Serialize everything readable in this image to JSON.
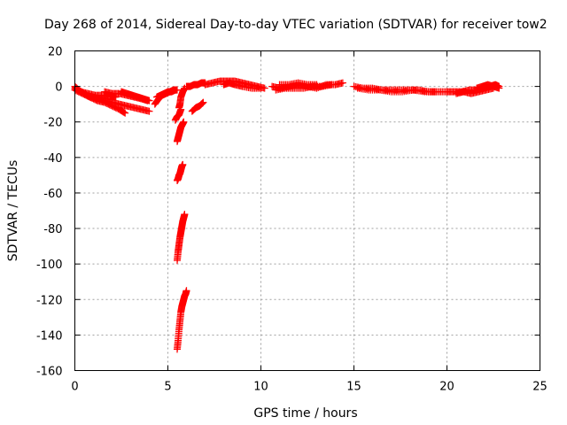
{
  "chart_data": {
    "type": "scatter",
    "title": "Day 268 of 2014, Sidereal Day-to-day VTEC variation (SDTVAR) for receiver tow2",
    "xlabel": "GPS time / hours",
    "ylabel": "SDTVAR / TECUs",
    "xlim": [
      0,
      25
    ],
    "ylim": [
      -160,
      20
    ],
    "xticks": [
      0,
      5,
      10,
      15,
      20,
      25
    ],
    "yticks": [
      20,
      0,
      -20,
      -40,
      -60,
      -80,
      -100,
      -120,
      -140,
      -160
    ],
    "grid": true,
    "marker": "+",
    "color": "#ff0000",
    "series": [
      {
        "name": "SDTVAR",
        "segments": [
          {
            "x": [
              0.0,
              0.2,
              0.5,
              0.8,
              1.2,
              1.6,
              2.0,
              2.4,
              2.7
            ],
            "y": [
              0,
              -2,
              -4,
              -6,
              -8,
              -9,
              -11,
              -13,
              -15
            ]
          },
          {
            "x": [
              0.0,
              0.3,
              0.7,
              1.1,
              1.5,
              1.9,
              2.2
            ],
            "y": [
              -1,
              -3,
              -4,
              -5,
              -5,
              -6,
              -6
            ]
          },
          {
            "x": [
              0.0,
              0.4,
              0.8,
              1.2,
              1.6,
              2.0,
              2.4,
              2.8,
              3.2,
              3.6,
              4.0
            ],
            "y": [
              -2,
              -4,
              -6,
              -7,
              -8,
              -9,
              -10,
              -11,
              -12,
              -13,
              -14
            ]
          },
          {
            "x": [
              1.6,
              2.0,
              2.4,
              2.8,
              3.2,
              3.6,
              3.9
            ],
            "y": [
              -3,
              -4,
              -4,
              -5,
              -6,
              -7,
              -8
            ]
          },
          {
            "x": [
              2.5,
              2.8,
              3.1,
              3.4,
              3.7,
              4.0
            ],
            "y": [
              -3,
              -4,
              -5,
              -6,
              -7,
              -8
            ]
          },
          {
            "x": [
              4.3,
              4.5,
              4.7,
              4.9,
              5.1,
              5.3,
              5.5
            ],
            "y": [
              -10,
              -7,
              -5,
              -4,
              -3,
              -2,
              -2
            ]
          },
          {
            "x": [
              4.4,
              4.6,
              4.8,
              5.0,
              5.2,
              5.4
            ],
            "y": [
              -6,
              -5,
              -4,
              -3,
              -3,
              -2
            ]
          },
          {
            "x": [
              5.5,
              5.55,
              5.6,
              5.65,
              5.7,
              5.75,
              5.8,
              5.85,
              5.9,
              5.95,
              6.0
            ],
            "y": [
              -148,
              -143,
              -137,
              -132,
              -127,
              -124,
              -122,
              -120,
              -118,
              -117,
              -115
            ]
          },
          {
            "x": [
              5.5,
              5.55,
              5.6,
              5.65,
              5.7,
              5.75,
              5.8,
              5.85,
              5.9
            ],
            "y": [
              -98,
              -93,
              -89,
              -85,
              -82,
              -79,
              -76,
              -74,
              -72
            ]
          },
          {
            "x": [
              5.5,
              5.55,
              5.6,
              5.65,
              5.7,
              5.75,
              5.8
            ],
            "y": [
              -53,
              -52,
              -50,
              -49,
              -47,
              -45,
              -44
            ]
          },
          {
            "x": [
              5.5,
              5.55,
              5.6,
              5.65,
              5.7,
              5.75,
              5.8,
              5.85
            ],
            "y": [
              -31,
              -29,
              -27,
              -25,
              -23,
              -22,
              -21,
              -20
            ]
          },
          {
            "x": [
              5.4,
              5.5,
              5.6,
              5.7
            ],
            "y": [
              -19,
              -17,
              -16,
              -13
            ]
          },
          {
            "x": [
              5.6,
              5.65,
              5.7,
              5.8,
              5.9
            ],
            "y": [
              -12,
              -10,
              -6,
              -3,
              -1
            ]
          },
          {
            "x": [
              6.0,
              6.2,
              6.4,
              6.6,
              6.8,
              7.0
            ],
            "y": [
              0,
              0,
              1,
              1,
              2,
              2
            ]
          },
          {
            "x": [
              6.3,
              6.5,
              6.7,
              6.9
            ],
            "y": [
              -14,
              -12,
              -11,
              -9
            ]
          },
          {
            "x": [
              7.0,
              7.4,
              7.8,
              8.2,
              8.6,
              9.0,
              9.4,
              9.8,
              10.2
            ],
            "y": [
              1,
              2,
              3,
              3,
              3,
              2,
              1,
              0,
              -1
            ]
          },
          {
            "x": [
              8.0,
              8.3,
              8.6,
              9.0,
              9.5,
              10.0
            ],
            "y": [
              1,
              2,
              1,
              0,
              -1,
              -1
            ]
          },
          {
            "x": [
              10.6,
              11.0,
              11.5,
              12.0,
              12.5,
              13.0,
              13.5,
              14.0,
              14.4
            ],
            "y": [
              0,
              -1,
              0,
              1,
              0,
              -1,
              1,
              1,
              2
            ]
          },
          {
            "x": [
              10.8,
              11.3,
              11.8,
              12.3,
              12.8,
              13.3,
              13.8
            ],
            "y": [
              -2,
              -1,
              -1,
              -1,
              0,
              0,
              1
            ]
          },
          {
            "x": [
              11.0,
              11.5,
              12.0,
              12.5,
              13.0
            ],
            "y": [
              1,
              1,
              2,
              1,
              1
            ]
          },
          {
            "x": [
              15.0,
              15.5,
              16.0,
              16.5,
              17.0,
              17.5,
              18.0,
              18.5,
              19.0,
              19.5,
              20.0
            ],
            "y": [
              0,
              -1,
              -1,
              -2,
              -2,
              -2,
              -2,
              -2,
              -3,
              -3,
              -3
            ]
          },
          {
            "x": [
              15.2,
              15.8,
              16.4,
              17.0,
              17.6,
              18.2,
              18.8,
              19.4
            ],
            "y": [
              -1,
              -2,
              -2,
              -3,
              -3,
              -2,
              -3,
              -3
            ]
          },
          {
            "x": [
              20.0,
              20.4,
              20.8,
              21.2,
              21.6,
              22.0,
              22.3,
              22.6,
              22.8
            ],
            "y": [
              -3,
              -3,
              -3,
              -2,
              -2,
              -1,
              0,
              1,
              0
            ]
          },
          {
            "x": [
              20.5,
              20.9,
              21.3,
              21.7,
              22.1,
              22.5
            ],
            "y": [
              -4,
              -3,
              -4,
              -3,
              -2,
              -1
            ]
          },
          {
            "x": [
              21.6,
              21.9,
              22.2,
              22.5,
              22.8
            ],
            "y": [
              -1,
              0,
              1,
              0,
              -1
            ]
          }
        ]
      }
    ]
  }
}
